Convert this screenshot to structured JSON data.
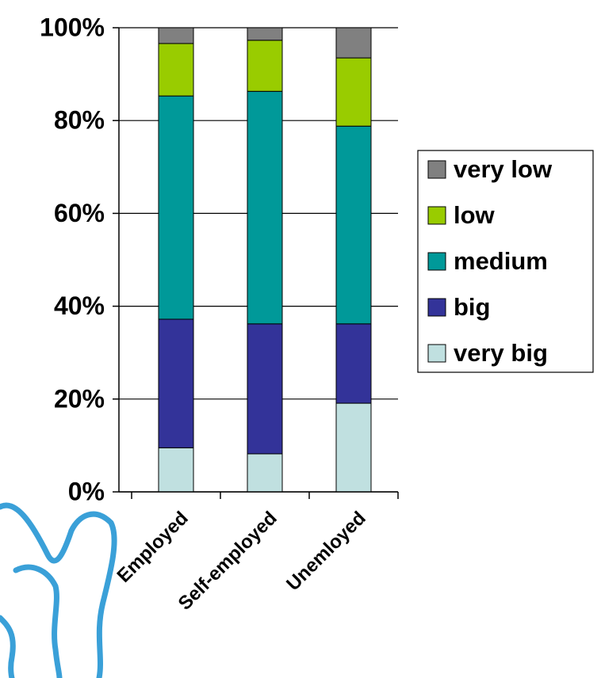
{
  "chart_data": {
    "type": "stacked_bar",
    "categories": [
      "Employed",
      "Self-employed",
      "Unemloyed"
    ],
    "series": [
      {
        "name": "very big",
        "color": "#c0e0e0",
        "values": [
          9.5,
          8.2,
          19.1
        ]
      },
      {
        "name": "big",
        "color": "#333399",
        "values": [
          27.7,
          28.0,
          17.1
        ]
      },
      {
        "name": "medium",
        "color": "#009999",
        "values": [
          48.1,
          50.1,
          42.6
        ]
      },
      {
        "name": "low",
        "color": "#99cc00",
        "values": [
          11.3,
          11.0,
          14.7
        ]
      },
      {
        "name": "very low",
        "color": "#808080",
        "values": [
          3.4,
          2.7,
          6.5
        ]
      }
    ],
    "ylim": [
      0,
      100
    ],
    "yticks": [
      {
        "value": 0,
        "label": "0%"
      },
      {
        "value": 20,
        "label": "20%"
      },
      {
        "value": 40,
        "label": "40%"
      },
      {
        "value": 60,
        "label": "60%"
      },
      {
        "value": 80,
        "label": "80%"
      },
      {
        "value": 100,
        "label": "100%"
      }
    ],
    "grid": true,
    "legend": "right"
  }
}
